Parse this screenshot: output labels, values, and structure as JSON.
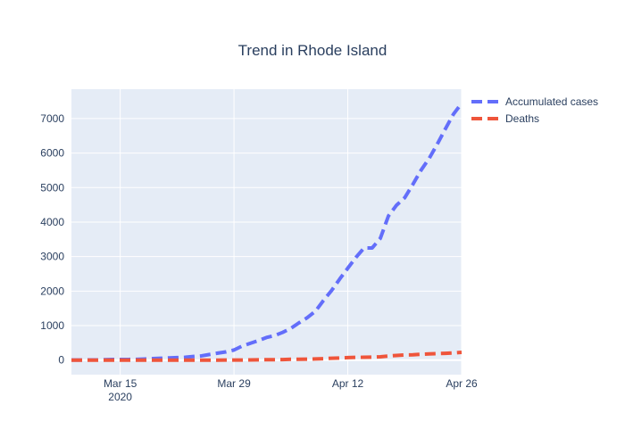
{
  "chart_data": {
    "type": "line",
    "title": "Trend in Rhode Island",
    "xlabel": "",
    "ylabel": "",
    "x_start": "2020-03-09",
    "x": [
      "2020-03-09",
      "2020-03-10",
      "2020-03-11",
      "2020-03-12",
      "2020-03-13",
      "2020-03-14",
      "2020-03-15",
      "2020-03-16",
      "2020-03-17",
      "2020-03-18",
      "2020-03-19",
      "2020-03-20",
      "2020-03-21",
      "2020-03-22",
      "2020-03-23",
      "2020-03-24",
      "2020-03-25",
      "2020-03-26",
      "2020-03-27",
      "2020-03-28",
      "2020-03-29",
      "2020-03-30",
      "2020-03-31",
      "2020-04-01",
      "2020-04-02",
      "2020-04-03",
      "2020-04-04",
      "2020-04-05",
      "2020-04-06",
      "2020-04-07",
      "2020-04-08",
      "2020-04-09",
      "2020-04-10",
      "2020-04-11",
      "2020-04-12",
      "2020-04-13",
      "2020-04-14",
      "2020-04-15",
      "2020-04-16",
      "2020-04-17",
      "2020-04-18",
      "2020-04-19",
      "2020-04-20",
      "2020-04-21",
      "2020-04-22",
      "2020-04-23",
      "2020-04-24",
      "2020-04-25",
      "2020-04-26"
    ],
    "series": [
      {
        "name": "Accumulated cases",
        "color": "#636efa",
        "values": [
          3,
          3,
          5,
          5,
          14,
          20,
          20,
          21,
          23,
          33,
          44,
          54,
          66,
          73,
          83,
          106,
          124,
          165,
          203,
          239,
          294,
          408,
          488,
          566,
          657,
          711,
          806,
          922,
          1082,
          1229,
          1414,
          1727,
          2015,
          2349,
          2665,
          2976,
          3251,
          3251,
          3529,
          4177,
          4491,
          4706,
          5090,
          5500,
          5841,
          6256,
          6699,
          7129,
          7439
        ]
      },
      {
        "name": "Deaths",
        "color": "#ef553b",
        "values": [
          0,
          0,
          0,
          0,
          0,
          0,
          0,
          0,
          0,
          0,
          0,
          0,
          0,
          0,
          0,
          0,
          0,
          0,
          1,
          2,
          3,
          4,
          8,
          10,
          12,
          14,
          17,
          25,
          27,
          30,
          35,
          43,
          56,
          63,
          73,
          80,
          84,
          87,
          97,
          118,
          137,
          150,
          155,
          171,
          181,
          189,
          197,
          210,
          226
        ]
      }
    ],
    "x_ticks": [
      {
        "date": "2020-03-15",
        "label": "Mar 15",
        "sublabel": "2020"
      },
      {
        "date": "2020-03-29",
        "label": "Mar 29",
        "sublabel": ""
      },
      {
        "date": "2020-04-12",
        "label": "Apr 12",
        "sublabel": ""
      },
      {
        "date": "2020-04-26",
        "label": "Apr 26",
        "sublabel": ""
      }
    ],
    "y_ticks": [
      0,
      1000,
      2000,
      3000,
      4000,
      5000,
      6000,
      7000
    ],
    "ylim": [
      -420,
      7850
    ],
    "xlim": [
      "2020-03-09",
      "2020-04-26"
    ],
    "grid": true,
    "legend_position": "top-right",
    "plot_background": "#e5ecf6"
  }
}
